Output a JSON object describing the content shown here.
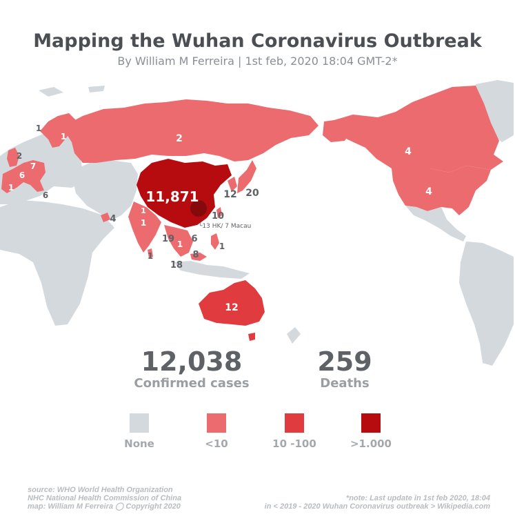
{
  "title": "Mapping the Wuhan Coronavirus Outbreak",
  "subtitle": "By William M Ferreira | 1st feb, 2020 18:04 GMT-2*",
  "colors": {
    "none": "#d3d9dd",
    "lt10": "#ec6b6f",
    "10to100": "#e03c40",
    "gt1000": "#b60c0f"
  },
  "map_labels": {
    "china": "11,871",
    "russia": "2",
    "canada": "4",
    "usa": "4",
    "australia": "12",
    "japan": "20",
    "south_korea": "12",
    "taiwan": "10",
    "hk_macau": "└13 HK/ 7 Macau",
    "thailand": "19",
    "vietnam": "6",
    "cambodia": "1",
    "singapore": "18",
    "malaysia": "8",
    "philippines": "1",
    "india": "1",
    "nepal": "1",
    "sri_lanka": "1",
    "uae": "4",
    "italy": "6",
    "germany": "7",
    "france": "6",
    "spain": "1",
    "uk": "2",
    "sweden": "1",
    "finland": "1"
  },
  "stats": {
    "confirmed_value": "12,038",
    "confirmed_label": "Confirmed cases",
    "deaths_value": "259",
    "deaths_label": "Deaths"
  },
  "legend": {
    "none": "None",
    "lt10": "<10",
    "mid": "10 -100",
    "high": ">1.000"
  },
  "footer": {
    "source1": "source: WHO World Health Organization",
    "source2": "NHC National Health Commission of China",
    "source3": "map: William M Ferreira ◯ Copyright 2020",
    "note1": "*note: Last update in 1st feb 2020, 18:04",
    "note2": "in < 2019 - 2020 Wuhan Coronavirus outbreak > Wikipedia.com"
  }
}
